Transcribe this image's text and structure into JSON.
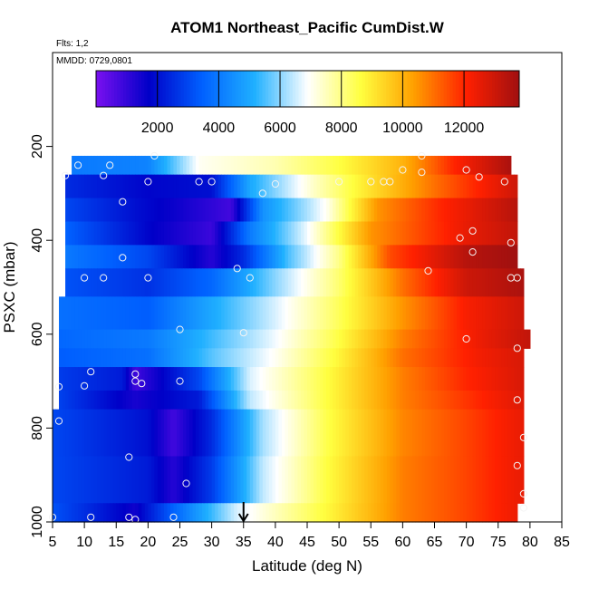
{
  "chart_data": {
    "type": "heatmap",
    "title": "ATOM1 Northeast_Pacific CumDist.W",
    "notes": [
      "Flts: 1,2",
      "MMDD: 0729,0801"
    ],
    "xlabel": "Latitude (deg N)",
    "ylabel": "PSXC (mbar)",
    "xlim": [
      5,
      85
    ],
    "ylim": [
      1000,
      0
    ],
    "xticks": [
      5,
      10,
      15,
      20,
      25,
      30,
      35,
      40,
      45,
      50,
      55,
      60,
      65,
      70,
      75,
      80,
      85
    ],
    "yticks": [
      200,
      400,
      600,
      800,
      1000
    ],
    "colorbar": {
      "min": 0,
      "max": 13800,
      "ticks": [
        2000,
        4000,
        6000,
        8000,
        10000,
        12000
      ],
      "colors": [
        "#7a10f0",
        "#0000c8",
        "#0060ff",
        "#20b0ff",
        "#ffffff",
        "#ffff40",
        "#ffa000",
        "#ff2000",
        "#a01010"
      ]
    },
    "marker": {
      "x": 35,
      "y": 1000,
      "symbol": "arrow-down"
    },
    "rows": [
      {
        "p0": 220,
        "p1": 260,
        "x0": 8,
        "x1": 77,
        "breaks": [
          [
            8,
            4000
          ],
          [
            20,
            4200
          ],
          [
            28,
            7000
          ],
          [
            40,
            7600
          ],
          [
            50,
            8600
          ],
          [
            60,
            10000
          ],
          [
            68,
            12000
          ],
          [
            77,
            13600
          ]
        ]
      },
      {
        "p0": 260,
        "p1": 310,
        "x0": 7,
        "x1": 78,
        "breaks": [
          [
            7,
            2500
          ],
          [
            20,
            1800
          ],
          [
            30,
            2000
          ],
          [
            36,
            5000
          ],
          [
            46,
            7400
          ],
          [
            55,
            9200
          ],
          [
            65,
            11000
          ],
          [
            78,
            13000
          ]
        ]
      },
      {
        "p0": 310,
        "p1": 360,
        "x0": 7,
        "x1": 78,
        "breaks": [
          [
            7,
            3000
          ],
          [
            18,
            2000
          ],
          [
            25,
            1500
          ],
          [
            33,
            800
          ],
          [
            38,
            4500
          ],
          [
            48,
            7000
          ],
          [
            56,
            10500
          ],
          [
            66,
            12000
          ],
          [
            78,
            13400
          ]
        ]
      },
      {
        "p0": 360,
        "p1": 410,
        "x0": 7,
        "x1": 78,
        "breaks": [
          [
            7,
            3500
          ],
          [
            20,
            1800
          ],
          [
            30,
            900
          ],
          [
            36,
            4000
          ],
          [
            45,
            6800
          ],
          [
            55,
            10500
          ],
          [
            70,
            12500
          ],
          [
            78,
            13200
          ]
        ]
      },
      {
        "p0": 410,
        "p1": 460,
        "x0": 7,
        "x1": 78,
        "breaks": [
          [
            7,
            4000
          ],
          [
            20,
            3000
          ],
          [
            30,
            1200
          ],
          [
            35,
            2500
          ],
          [
            42,
            5500
          ],
          [
            50,
            8000
          ],
          [
            58,
            11500
          ],
          [
            70,
            13400
          ],
          [
            78,
            13800
          ]
        ]
      },
      {
        "p0": 460,
        "p1": 520,
        "x0": 7,
        "x1": 79,
        "breaks": [
          [
            7,
            3200
          ],
          [
            20,
            2600
          ],
          [
            30,
            3600
          ],
          [
            40,
            6000
          ],
          [
            50,
            8200
          ],
          [
            60,
            11000
          ],
          [
            70,
            13000
          ],
          [
            79,
            13600
          ]
        ]
      },
      {
        "p0": 520,
        "p1": 590,
        "x0": 6,
        "x1": 79,
        "breaks": [
          [
            6,
            3800
          ],
          [
            20,
            3400
          ],
          [
            30,
            5000
          ],
          [
            40,
            6600
          ],
          [
            50,
            8400
          ],
          [
            60,
            10500
          ],
          [
            70,
            12200
          ],
          [
            79,
            13000
          ]
        ]
      },
      {
        "p0": 590,
        "p1": 630,
        "x0": 6,
        "x1": 80,
        "breaks": [
          [
            6,
            3600
          ],
          [
            20,
            4000
          ],
          [
            30,
            5400
          ],
          [
            40,
            6800
          ],
          [
            50,
            8600
          ],
          [
            60,
            10800
          ],
          [
            72,
            12400
          ],
          [
            80,
            13200
          ]
        ]
      },
      {
        "p0": 630,
        "p1": 670,
        "x0": 6,
        "x1": 79,
        "breaks": [
          [
            6,
            3400
          ],
          [
            20,
            3800
          ],
          [
            30,
            5600
          ],
          [
            40,
            7000
          ],
          [
            50,
            8800
          ],
          [
            60,
            11000
          ],
          [
            72,
            12300
          ],
          [
            79,
            12800
          ]
        ]
      },
      {
        "p0": 670,
        "p1": 720,
        "x0": 6,
        "x1": 79,
        "breaks": [
          [
            6,
            2800
          ],
          [
            16,
            2200
          ],
          [
            18,
            800
          ],
          [
            28,
            3000
          ],
          [
            36,
            6600
          ],
          [
            48,
            8600
          ],
          [
            60,
            10800
          ],
          [
            70,
            12000
          ],
          [
            79,
            12800
          ]
        ]
      },
      {
        "p0": 720,
        "p1": 760,
        "x0": 6,
        "x1": 79,
        "breaks": [
          [
            6,
            2900
          ],
          [
            18,
            1400
          ],
          [
            28,
            2200
          ],
          [
            36,
            6400
          ],
          [
            48,
            8600
          ],
          [
            60,
            10800
          ],
          [
            70,
            11800
          ],
          [
            79,
            12700
          ]
        ]
      },
      {
        "p0": 760,
        "p1": 860,
        "x0": 5,
        "x1": 79,
        "breaks": [
          [
            5,
            3000
          ],
          [
            20,
            2000
          ],
          [
            24,
            800
          ],
          [
            30,
            2500
          ],
          [
            38,
            6200
          ],
          [
            48,
            8500
          ],
          [
            60,
            10700
          ],
          [
            70,
            11600
          ],
          [
            79,
            12500
          ]
        ]
      },
      {
        "p0": 860,
        "p1": 960,
        "x0": 5,
        "x1": 79,
        "breaks": [
          [
            5,
            3000
          ],
          [
            20,
            2200
          ],
          [
            24,
            1200
          ],
          [
            30,
            2800
          ],
          [
            38,
            6400
          ],
          [
            48,
            8600
          ],
          [
            60,
            10800
          ],
          [
            70,
            11600
          ],
          [
            79,
            12500
          ]
        ]
      },
      {
        "p0": 960,
        "p1": 1000,
        "x0": 5,
        "x1": 78,
        "breaks": [
          [
            5,
            3200
          ],
          [
            18,
            1500
          ],
          [
            24,
            3500
          ],
          [
            34,
            6600
          ],
          [
            48,
            8700
          ],
          [
            60,
            10800
          ],
          [
            70,
            11600
          ],
          [
            78,
            12400
          ]
        ]
      }
    ],
    "points": [
      [
        9,
        240
      ],
      [
        14,
        240
      ],
      [
        20,
        275
      ],
      [
        21,
        220
      ],
      [
        13,
        262
      ],
      [
        7,
        262
      ],
      [
        16,
        318
      ],
      [
        28,
        275
      ],
      [
        30,
        275
      ],
      [
        38,
        300
      ],
      [
        40,
        280
      ],
      [
        50,
        275
      ],
      [
        55,
        275
      ],
      [
        57,
        275
      ],
      [
        58,
        275
      ],
      [
        60,
        250
      ],
      [
        63,
        220
      ],
      [
        63,
        255
      ],
      [
        70,
        250
      ],
      [
        72,
        265
      ],
      [
        76,
        275
      ],
      [
        69,
        395
      ],
      [
        71,
        380
      ],
      [
        71,
        425
      ],
      [
        77,
        405
      ],
      [
        64,
        465
      ],
      [
        16,
        437
      ],
      [
        34,
        460
      ],
      [
        36,
        480
      ],
      [
        10,
        480
      ],
      [
        13,
        480
      ],
      [
        20,
        480
      ],
      [
        77,
        480
      ],
      [
        78,
        480
      ],
      [
        25,
        590
      ],
      [
        35,
        597
      ],
      [
        70,
        610
      ],
      [
        78,
        630
      ],
      [
        11,
        680
      ],
      [
        18,
        685
      ],
      [
        18,
        700
      ],
      [
        19,
        705
      ],
      [
        10,
        710
      ],
      [
        25,
        700
      ],
      [
        6,
        712
      ],
      [
        6,
        785
      ],
      [
        78,
        740
      ],
      [
        79,
        820
      ],
      [
        17,
        862
      ],
      [
        26,
        918
      ],
      [
        78,
        880
      ],
      [
        5,
        990
      ],
      [
        11,
        990
      ],
      [
        17,
        990
      ],
      [
        18,
        995
      ],
      [
        24,
        990
      ],
      [
        79,
        940
      ],
      [
        79,
        970
      ]
    ]
  }
}
